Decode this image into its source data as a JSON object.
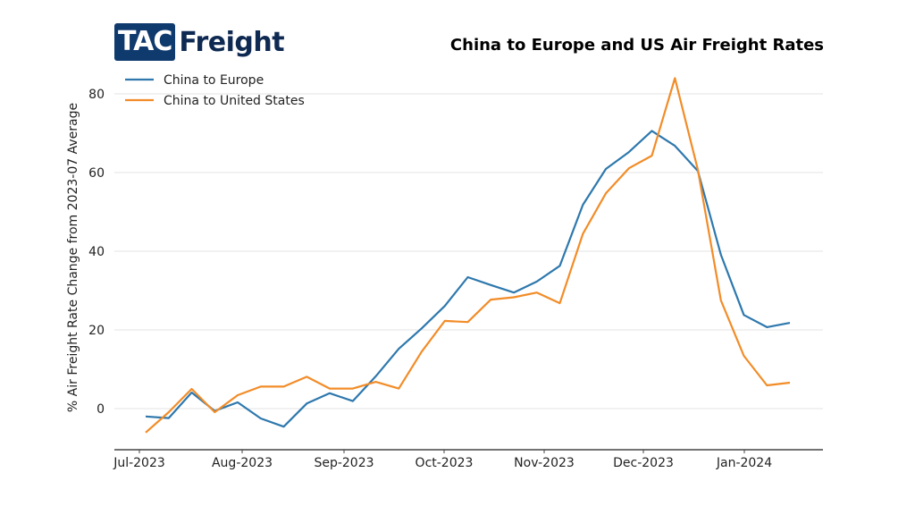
{
  "logo": {
    "part1": "TAC",
    "part2": "Freight"
  },
  "chart_data": {
    "type": "line",
    "title": "China to Europe and US Air Freight Rates",
    "xlabel": "",
    "ylabel": "% Air Freight Rate Change from 2023-07 Average",
    "ylim": [
      -10,
      85
    ],
    "yticks": [
      0,
      20,
      40,
      60,
      80
    ],
    "xtick_labels": [
      "Jul-2023",
      "Aug-2023",
      "Sep-2023",
      "Oct-2023",
      "Nov-2023",
      "Dec-2023",
      "Jan-2024"
    ],
    "grid": "horizontal",
    "legend_position": "top-left",
    "x_weeks": 29,
    "series": [
      {
        "name": "China to Europe",
        "color": "#2e78ad",
        "values": [
          -2.0,
          -2.4,
          4.1,
          -0.6,
          1.6,
          -2.5,
          -4.6,
          1.3,
          3.9,
          1.9,
          8.2,
          15.2,
          20.4,
          26.1,
          33.4,
          31.4,
          29.5,
          32.3,
          36.3,
          51.8,
          60.9,
          65.2,
          70.6,
          66.8,
          60.4,
          39.1,
          23.8,
          20.7,
          21.8
        ]
      },
      {
        "name": "China to United States",
        "color": "#f28c28",
        "values": [
          -6.1,
          -0.9,
          5.0,
          -0.9,
          3.4,
          5.6,
          5.6,
          8.1,
          5.1,
          5.1,
          6.8,
          5.1,
          14.5,
          22.3,
          22.0,
          27.7,
          28.3,
          29.5,
          26.8,
          44.4,
          54.7,
          61.1,
          64.3,
          84.0,
          60.7,
          27.5,
          13.4,
          5.9,
          6.6
        ]
      }
    ]
  }
}
